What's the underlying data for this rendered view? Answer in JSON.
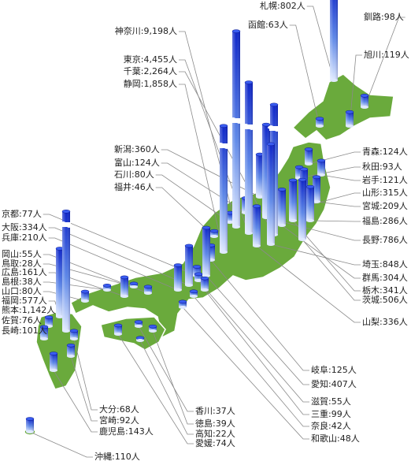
{
  "prefectures": [
    {
      "label": "札幌:802人",
      "value": 802
    },
    {
      "label": "函館:63人",
      "value": 63
    },
    {
      "label": "釧路:98人",
      "value": 98
    },
    {
      "label": "旭川:119人",
      "value": 119
    },
    {
      "label": "神奈川:9,198人",
      "value": 9198
    },
    {
      "label": "東京:4,455人",
      "value": 4455
    },
    {
      "label": "千葉:2,264人",
      "value": 2264
    },
    {
      "label": "静岡:1,858人",
      "value": 1858
    },
    {
      "label": "新潟:360人",
      "value": 360
    },
    {
      "label": "富山:124人",
      "value": 124
    },
    {
      "label": "石川:80人",
      "value": 80
    },
    {
      "label": "福井:46人",
      "value": 46
    },
    {
      "label": "青森:124人",
      "value": 124
    },
    {
      "label": "秋田:93人",
      "value": 93
    },
    {
      "label": "岩手:121人",
      "value": 121
    },
    {
      "label": "山形:315人",
      "value": 315
    },
    {
      "label": "宮城:209人",
      "value": 209
    },
    {
      "label": "福島:286人",
      "value": 286
    },
    {
      "label": "長野:786人",
      "value": 786
    },
    {
      "label": "埼玉:848人",
      "value": 848
    },
    {
      "label": "群馬:304人",
      "value": 304
    },
    {
      "label": "栃木:341人",
      "value": 341
    },
    {
      "label": "茨城:506人",
      "value": 506
    },
    {
      "label": "山梨:336人",
      "value": 336
    },
    {
      "label": "京都:77人",
      "value": 77
    },
    {
      "label": "大阪:334人",
      "value": 334
    },
    {
      "label": "兵庫:210人",
      "value": 210
    },
    {
      "label": "岡山:55人",
      "value": 55
    },
    {
      "label": "鳥取:28人",
      "value": 28
    },
    {
      "label": "広島:161人",
      "value": 161
    },
    {
      "label": "島根:38人",
      "value": 38
    },
    {
      "label": "山口:80人",
      "value": 80
    },
    {
      "label": "福岡:577人",
      "value": 577
    },
    {
      "label": "熊本:1,142人",
      "value": 1142
    },
    {
      "label": "佐賀:76人",
      "value": 76
    },
    {
      "label": "長崎:101人",
      "value": 101
    },
    {
      "label": "岐阜:125人",
      "value": 125
    },
    {
      "label": "愛知:407人",
      "value": 407
    },
    {
      "label": "滋賀:55人",
      "value": 55
    },
    {
      "label": "三重:99人",
      "value": 99
    },
    {
      "label": "奈良:42人",
      "value": 42
    },
    {
      "label": "和歌山:48人",
      "value": 48
    },
    {
      "label": "香川:37人",
      "value": 37
    },
    {
      "label": "徳島:39人",
      "value": 39
    },
    {
      "label": "高知:22人",
      "value": 22
    },
    {
      "label": "愛媛:74人",
      "value": 74
    },
    {
      "label": "大分:68人",
      "value": 68
    },
    {
      "label": "宮崎:92人",
      "value": 92
    },
    {
      "label": "鹿児島:143人",
      "value": 143
    },
    {
      "label": "沖縄:110人",
      "value": 110
    }
  ]
}
